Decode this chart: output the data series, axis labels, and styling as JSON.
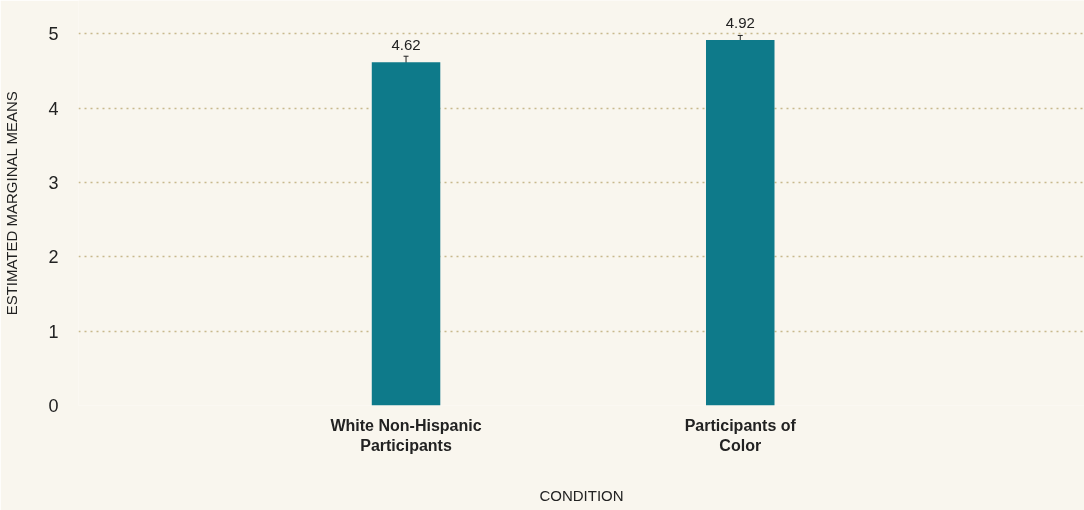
{
  "chart_data": {
    "type": "bar",
    "xlabel": "CONDITION",
    "ylabel": "ESTIMATED MARGINAL MEANS",
    "categories": [
      "White Non-Hispanic Participants",
      "Participants of Color"
    ],
    "values": [
      4.62,
      4.92
    ],
    "errors": [
      0.08,
      0.06
    ],
    "color": "#0e7a8a",
    "data_labels": true,
    "ylim": [
      0,
      5.45
    ],
    "yticks": [
      0,
      1,
      2,
      3,
      4,
      5
    ],
    "grid": "y"
  }
}
